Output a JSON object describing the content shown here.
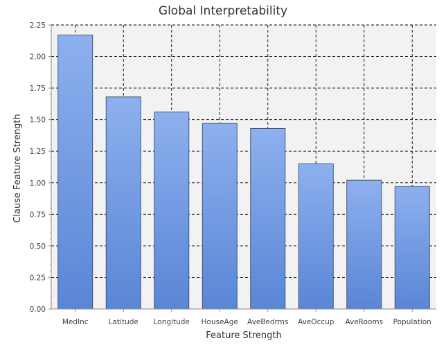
{
  "chart_data": {
    "type": "bar",
    "title": "Global Interpretability",
    "xlabel": "Feature Strength",
    "ylabel": "Clause Feature Strength",
    "categories": [
      "MedInc",
      "Latitude",
      "Longitude",
      "HouseAge",
      "AveBedrms",
      "AveOccup",
      "AveRooms",
      "Population"
    ],
    "values": [
      2.17,
      1.68,
      1.56,
      1.47,
      1.43,
      1.15,
      1.02,
      0.97
    ],
    "ylim": [
      0,
      2.25
    ],
    "yticks": [
      "0.00",
      "0.25",
      "0.50",
      "0.75",
      "1.00",
      "1.25",
      "1.50",
      "1.75",
      "2.00",
      "2.25"
    ],
    "grid": true,
    "legend": "none",
    "colors": {
      "bar_top": "#8db0ee",
      "bar_bottom": "#5a86d6",
      "bar_stroke": "#3a4a6a",
      "plot_background": "#f2f2f2",
      "grid": "#000000",
      "axis": "#888888"
    }
  }
}
